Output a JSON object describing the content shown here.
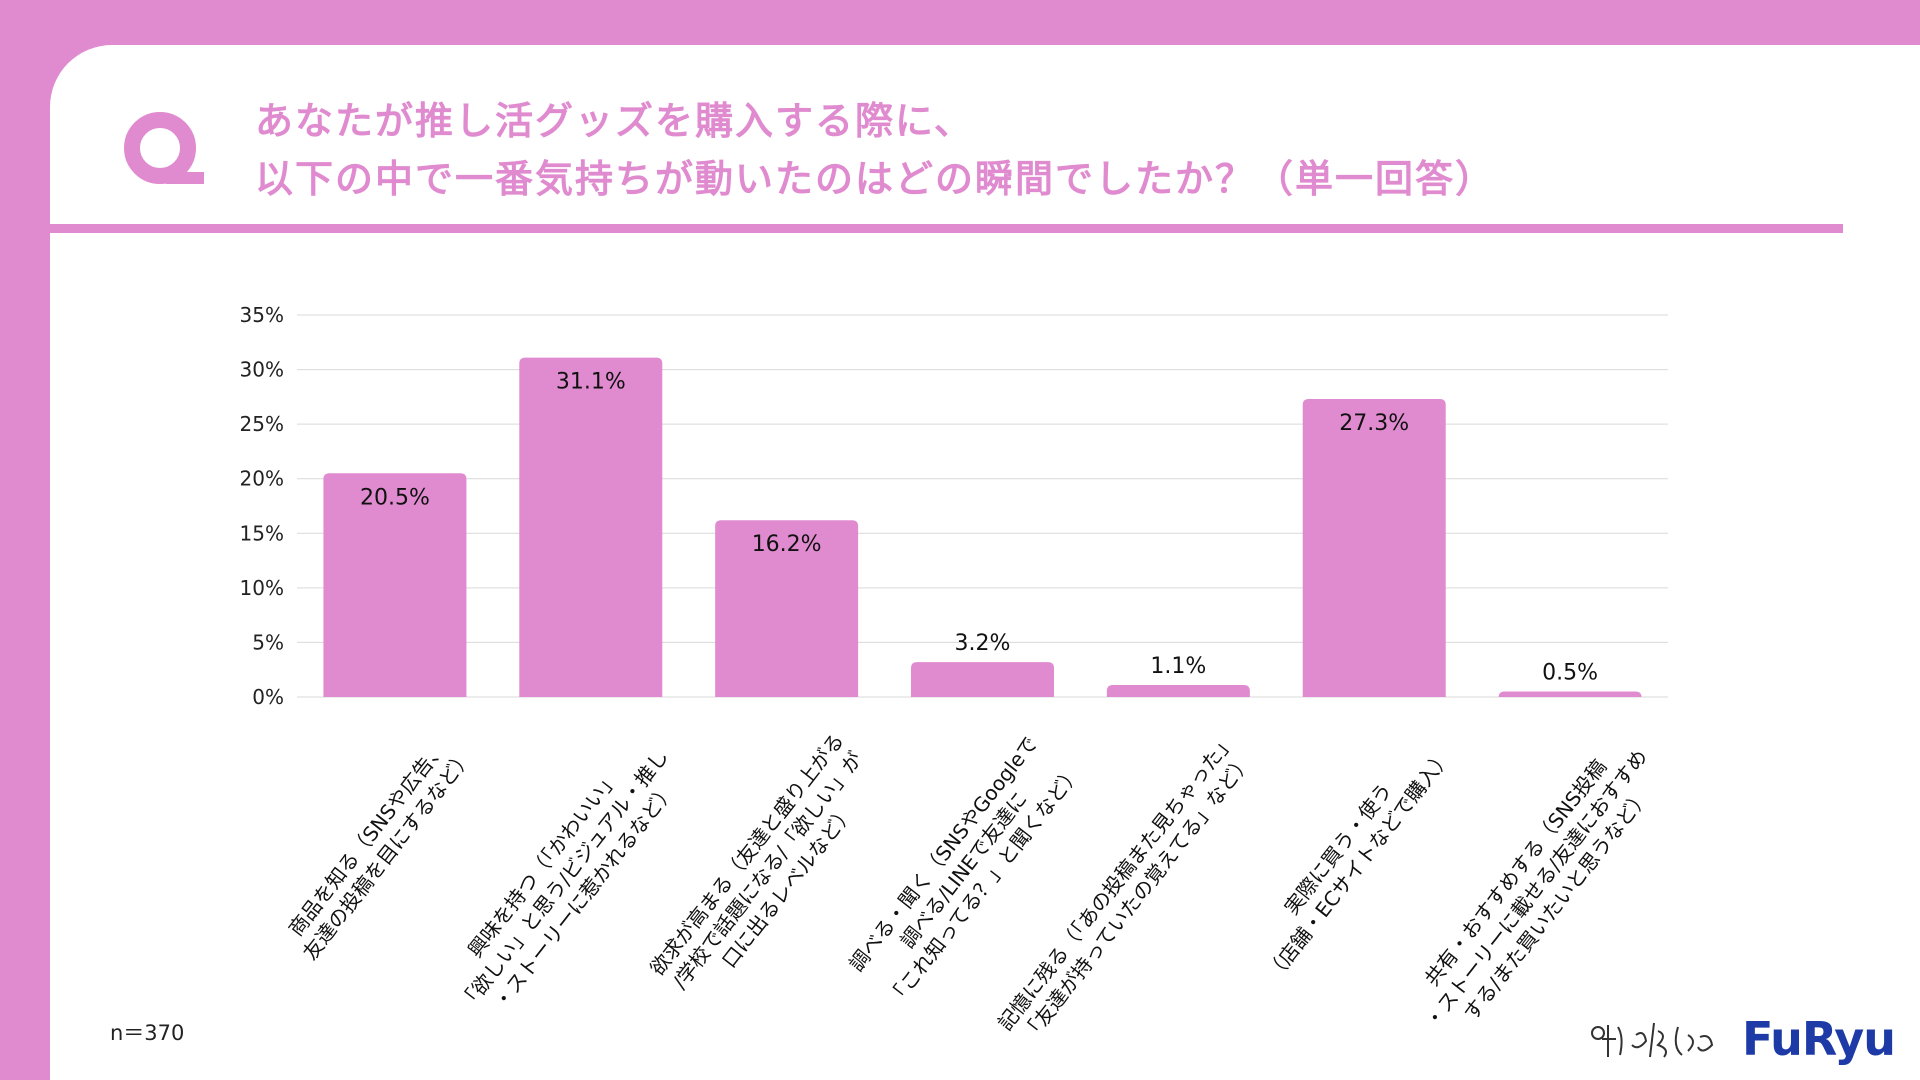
{
  "title": {
    "line1": "あなたが推し活グッズを購入する際に、",
    "line2": "以下の中で一番気持ちが動いたのはどの瞬間でしたか？（単一回答）"
  },
  "sample_size": "n＝370",
  "logos": {
    "hand": "僕と私と",
    "brand": "FuRyu"
  },
  "colors": {
    "accent": "#e08bcf",
    "brand": "#1e3aa6",
    "grid": "#d9d9d9"
  },
  "chart_data": {
    "type": "bar",
    "categories": [
      [
        "商品を知る（SNSや広告、",
        "友達の投稿を目にするなど）"
      ],
      [
        "興味を持つ（「かわいい」",
        "「欲しい」と思う/ビジュアル・推し",
        "・ストーリーに惹かれるなど）"
      ],
      [
        "欲求が高まる（友達と盛り上がる",
        "/学校で話題になる/「欲しい」が",
        "口に出るレベルなど）"
      ],
      [
        "調べる・聞く（SNSやGoogleで",
        "調べる/LINEで友達に",
        "「これ知ってる？」と聞くなど）"
      ],
      [
        "記憶に残る（「あの投稿また見ちゃった」",
        "「友達が持っていたの覚えてる」など）"
      ],
      [
        "実際に買う・使う",
        "（店舗・ECサイトなどで購入）"
      ],
      [
        "共有・おすすめする（SNS投稿",
        "・ストーリーに載せる/友達におすすめ",
        "する/また買いたいと思うなど）"
      ]
    ],
    "values": [
      20.5,
      31.1,
      16.2,
      3.2,
      1.1,
      27.3,
      0.5
    ],
    "value_labels": [
      "20.5%",
      "31.1%",
      "16.2%",
      "3.2%",
      "1.1%",
      "27.3%",
      "0.5%"
    ],
    "yticks": [
      "0%",
      "5%",
      "10%",
      "15%",
      "20%",
      "25%",
      "30%",
      "35%"
    ],
    "ylim": [
      0,
      35
    ],
    "grid": true,
    "legend": "none"
  }
}
